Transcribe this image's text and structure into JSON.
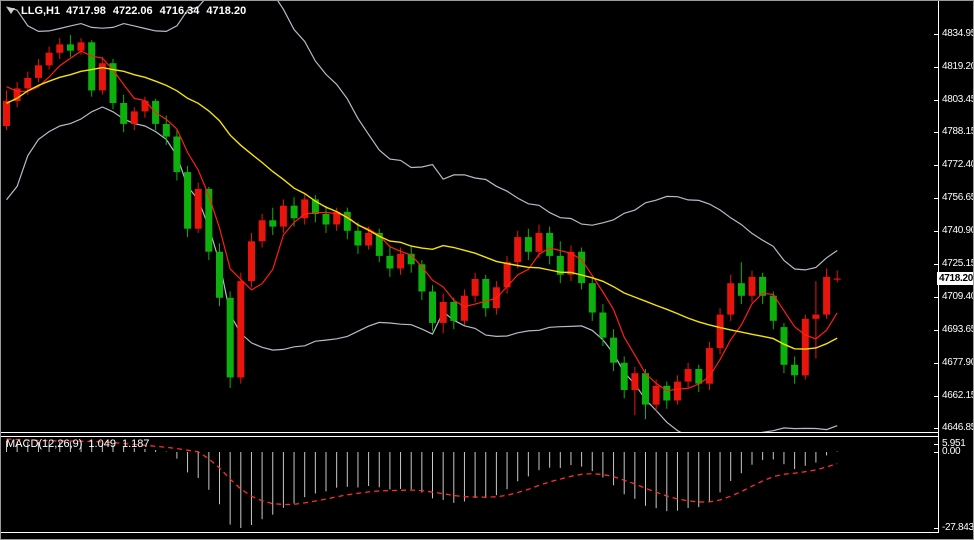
{
  "header": {
    "symbol_period": "LLG,H1",
    "open": "4717.98",
    "high": "4722.06",
    "low": "4716.34",
    "close": "4718.20"
  },
  "price_axis": {
    "labels": [
      "4834.95",
      "4819.20",
      "4803.45",
      "4788.15",
      "4772.40",
      "4756.65",
      "4740.90",
      "4725.15",
      "4709.40",
      "4693.65",
      "4677.90",
      "4662.15",
      "4646.85"
    ],
    "current_price": "4718.20"
  },
  "colors": {
    "background": "#000000",
    "bull_candle": "#e8150d",
    "bear_candle": "#0db10d",
    "bollinger_band": "#b4bcc6",
    "ma_yellow": "#f5e400",
    "ma_red": "#ff1e14",
    "axis_text": "#ffffff",
    "separator": "#ffffff",
    "macd_histogram": "#c8c8c8",
    "macd_signal": "#ff2d2d",
    "price_box_bg": "#ffffff",
    "price_box_text": "#000000"
  },
  "chart_data": {
    "type": "candlestick",
    "title": "LLG,H1 candlestick chart with Bollinger Bands and moving averages",
    "ylim": [
      4646.85,
      4834.95
    ],
    "grid": false,
    "candles_ohlc": [
      [
        4791,
        4808,
        4789,
        4803
      ],
      [
        4803,
        4812,
        4800,
        4809
      ],
      [
        4809,
        4817,
        4806,
        4814
      ],
      [
        4814,
        4823,
        4812,
        4820
      ],
      [
        4820,
        4829,
        4818,
        4826
      ],
      [
        4826,
        4833,
        4823,
        4830
      ],
      [
        4830,
        4834.5,
        4824,
        4827
      ],
      [
        4827,
        4833,
        4825,
        4831
      ],
      [
        4831,
        4832,
        4805,
        4808
      ],
      [
        4808,
        4824,
        4806,
        4821
      ],
      [
        4821,
        4823,
        4799,
        4802
      ],
      [
        4802,
        4806,
        4788,
        4792
      ],
      [
        4792,
        4800,
        4789,
        4798
      ],
      [
        4798,
        4805,
        4795,
        4803
      ],
      [
        4803,
        4804,
        4789,
        4792
      ],
      [
        4792,
        4796,
        4782,
        4786
      ],
      [
        4786,
        4789,
        4765,
        4769
      ],
      [
        4769,
        4772,
        4738,
        4742
      ],
      [
        4742,
        4764,
        4740,
        4761
      ],
      [
        4761,
        4762,
        4727,
        4731
      ],
      [
        4731,
        4735,
        4705,
        4709
      ],
      [
        4709,
        4712,
        4666,
        4671
      ],
      [
        4671,
        4721,
        4668,
        4717
      ],
      [
        4717,
        4740,
        4714,
        4736
      ],
      [
        4736,
        4749,
        4733,
        4746
      ],
      [
        4746,
        4752,
        4739,
        4743
      ],
      [
        4743,
        4756,
        4740,
        4753
      ],
      [
        4753,
        4757,
        4743,
        4747
      ],
      [
        4747,
        4759,
        4744,
        4756
      ],
      [
        4756,
        4758,
        4745,
        4749
      ],
      [
        4749,
        4753,
        4740,
        4744
      ],
      [
        4744,
        4752,
        4741,
        4750
      ],
      [
        4750,
        4752,
        4737,
        4741
      ],
      [
        4741,
        4745,
        4730,
        4734
      ],
      [
        4734,
        4743,
        4732,
        4740
      ],
      [
        4740,
        4742,
        4726,
        4729
      ],
      [
        4729,
        4734,
        4719,
        4723
      ],
      [
        4723,
        4733,
        4720,
        4730
      ],
      [
        4730,
        4734,
        4721,
        4725
      ],
      [
        4725,
        4727,
        4708,
        4712
      ],
      [
        4712,
        4715,
        4693,
        4697
      ],
      [
        4697,
        4711,
        4692,
        4707
      ],
      [
        4707,
        4709,
        4694,
        4698
      ],
      [
        4698,
        4713,
        4696,
        4710
      ],
      [
        4710,
        4721,
        4707,
        4718
      ],
      [
        4718,
        4720,
        4700,
        4704
      ],
      [
        4704,
        4717,
        4701,
        4714
      ],
      [
        4714,
        4729,
        4711,
        4726
      ],
      [
        4726,
        4741,
        4723,
        4738
      ],
      [
        4738,
        4742,
        4727,
        4731
      ],
      [
        4731,
        4744,
        4728,
        4740
      ],
      [
        4740,
        4743,
        4725,
        4729
      ],
      [
        4729,
        4736,
        4716,
        4720
      ],
      [
        4720,
        4734,
        4717,
        4731
      ],
      [
        4731,
        4733,
        4713,
        4716
      ],
      [
        4716,
        4719,
        4698,
        4702
      ],
      [
        4702,
        4706,
        4686,
        4690
      ],
      [
        4690,
        4694,
        4674,
        4678
      ],
      [
        4678,
        4681,
        4661,
        4665
      ],
      [
        4665,
        4676,
        4653,
        4673
      ],
      [
        4673,
        4675,
        4651,
        4658
      ],
      [
        4658,
        4670,
        4655,
        4667
      ],
      [
        4667,
        4669,
        4656,
        4660
      ],
      [
        4660,
        4672,
        4658,
        4669
      ],
      [
        4669,
        4678,
        4666,
        4675
      ],
      [
        4675,
        4677,
        4664,
        4668
      ],
      [
        4668,
        4688,
        4665,
        4685
      ],
      [
        4685,
        4704,
        4682,
        4701
      ],
      [
        4701,
        4720,
        4698,
        4716
      ],
      [
        4716,
        4726,
        4706,
        4710
      ],
      [
        4710,
        4722,
        4707,
        4719
      ],
      [
        4719,
        4721,
        4706,
        4710
      ],
      [
        4710,
        4712,
        4694,
        4698
      ],
      [
        4695,
        4697,
        4673,
        4677
      ],
      [
        4677,
        4681,
        4668,
        4672
      ],
      [
        4672,
        4701,
        4670,
        4699
      ],
      [
        4699,
        4717,
        4680,
        4701
      ],
      [
        4701,
        4723,
        4699,
        4719
      ],
      [
        4717.98,
        4722.06,
        4716.34,
        4718.2
      ]
    ],
    "indicators": {
      "bollinger": {
        "period": 20,
        "deviation": 2
      },
      "ma_yellow_period": 20,
      "ma_red_period": 5
    },
    "macd": {
      "label": "MACD(12,26,9)",
      "fast": 12,
      "slow": 26,
      "signal": 9,
      "value_macd": "1.049",
      "value_signal": "1.187",
      "axis_labels": [
        "5.951",
        "0.00",
        "-27.843"
      ],
      "axis_max": 5.951,
      "axis_min": -27.843
    }
  }
}
